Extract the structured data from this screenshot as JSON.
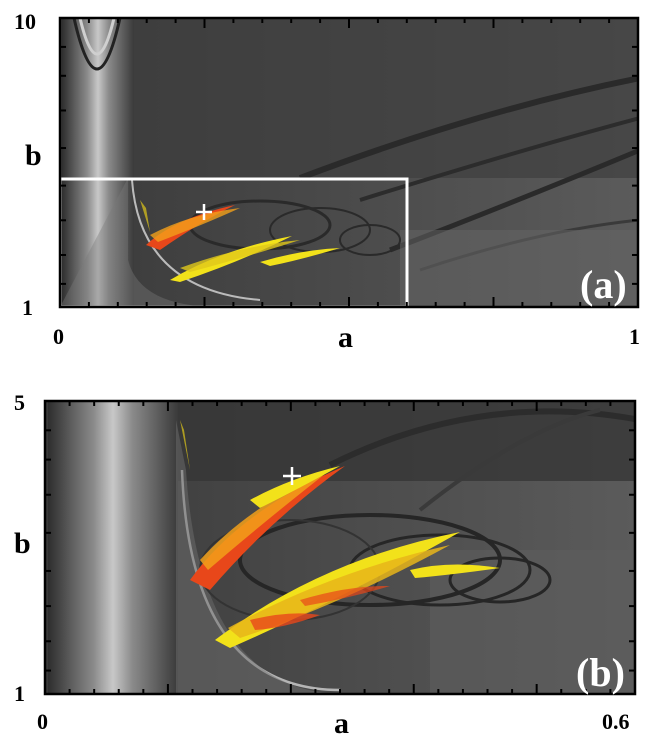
{
  "chart_data": [
    {
      "type": "heatmap",
      "panel_label": "(a)",
      "xlabel": "a",
      "ylabel": "b",
      "xlim": [
        0,
        1
      ],
      "ylim": [
        1,
        10
      ],
      "x_tick_labels": [
        "0",
        "1"
      ],
      "y_tick_labels": [
        "1",
        "10"
      ],
      "y_scale": "log",
      "zoom_box": {
        "x": [
          0,
          0.6
        ],
        "y": [
          1,
          5
        ]
      },
      "marker": {
        "a": 0.25,
        "b": 3.6
      },
      "colors": {
        "background": "#4a4a4a",
        "chaos_red": "#e8471a",
        "chaos_yellow": "#f2e21a",
        "box": "#ffffff"
      }
    },
    {
      "type": "heatmap",
      "panel_label": "(b)",
      "xlabel": "a",
      "ylabel": "b",
      "xlim": [
        0,
        0.6
      ],
      "ylim": [
        1,
        5
      ],
      "x_tick_labels": [
        "0",
        "0.6"
      ],
      "y_tick_labels": [
        "1",
        "5"
      ],
      "y_scale": "log",
      "marker": {
        "a": 0.25,
        "b": 3.6
      },
      "colors": {
        "background": "#4a4a4a",
        "chaos_red": "#e8471a",
        "chaos_yellow": "#f2e21a"
      }
    }
  ]
}
